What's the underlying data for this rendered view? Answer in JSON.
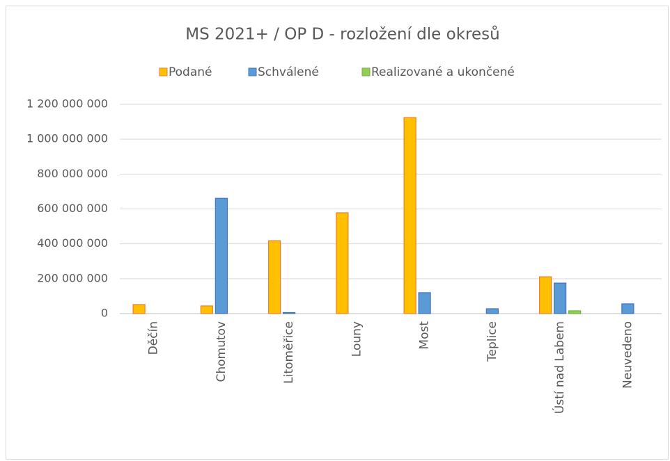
{
  "chart_data": {
    "type": "bar",
    "title": "MS 2021+ / OP D - rozložení dle okresů",
    "categories": [
      "Děčín",
      "Chomutov",
      "Litoměřice",
      "Louny",
      "Most",
      "Teplice",
      "Ústí nad Labem",
      "Neuvedeno"
    ],
    "series": [
      {
        "name": "Podané",
        "color": "#FFC000",
        "values": [
          52000000,
          44000000,
          418000000,
          578000000,
          1124000000,
          0,
          211000000,
          0
        ]
      },
      {
        "name": "Schválené",
        "color": "#5B9BD5",
        "values": [
          0,
          661000000,
          6000000,
          0,
          120000000,
          28000000,
          175000000,
          56000000
        ]
      },
      {
        "name": "Realizované a ukončené",
        "color": "#92D050",
        "values": [
          0,
          0,
          0,
          0,
          0,
          0,
          16000000,
          0
        ]
      }
    ],
    "ylim": [
      0,
      1200000000
    ],
    "yticks": [
      0,
      {
        "value": 200000000,
        "label": "200 000 000"
      },
      {
        "value": 400000000,
        "label": "400 000 000"
      },
      {
        "value": 600000000,
        "label": "600 000 000"
      },
      {
        "value": 800000000,
        "label": "800 000 000"
      },
      {
        "value": 1000000000,
        "label": "1 000 000 000"
      },
      {
        "value": 1200000000,
        "label": "1 200 000 000"
      }
    ],
    "grid": true,
    "legend": "top"
  }
}
